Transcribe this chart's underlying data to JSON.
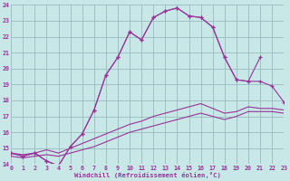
{
  "xlabel": "Windchill (Refroidissement éolien,°C)",
  "bg_color": "#c8e8e8",
  "grid_color": "#99bbbb",
  "line_color": "#993399",
  "xlim": [
    0,
    23
  ],
  "ylim": [
    14,
    24
  ],
  "xticks": [
    0,
    1,
    2,
    3,
    4,
    5,
    6,
    7,
    8,
    9,
    10,
    11,
    12,
    13,
    14,
    15,
    16,
    17,
    18,
    19,
    20,
    21,
    22,
    23
  ],
  "yticks": [
    14,
    15,
    16,
    17,
    18,
    19,
    20,
    21,
    22,
    23,
    24
  ],
  "curve1_x": [
    0,
    1,
    2,
    3,
    4,
    5,
    6,
    7,
    8,
    9,
    10,
    11,
    12,
    13,
    14,
    15,
    16,
    17,
    18,
    19,
    20,
    21
  ],
  "curve1_y": [
    14.7,
    14.5,
    14.7,
    14.2,
    13.9,
    15.1,
    15.9,
    17.4,
    19.6,
    20.7,
    22.3,
    21.8,
    23.2,
    23.6,
    23.8,
    23.3,
    23.2,
    22.6,
    20.7,
    19.3,
    19.2,
    20.7
  ],
  "curve2_x": [
    0,
    1,
    2,
    3,
    4,
    5,
    6,
    7,
    8,
    9,
    10,
    11,
    12,
    13,
    14,
    15,
    16,
    17,
    18,
    19,
    20,
    21,
    22,
    23
  ],
  "curve2_y": [
    14.7,
    14.5,
    14.7,
    14.2,
    13.9,
    15.1,
    15.9,
    17.4,
    19.6,
    20.7,
    22.3,
    21.8,
    23.2,
    23.6,
    23.8,
    23.3,
    23.2,
    22.6,
    20.7,
    19.3,
    19.2,
    19.2,
    18.9,
    17.9
  ],
  "curve3_x": [
    0,
    1,
    2,
    3,
    4,
    5,
    6,
    7,
    8,
    9,
    10,
    11,
    12,
    13,
    14,
    15,
    16,
    17,
    18,
    19,
    20,
    21,
    22,
    23
  ],
  "curve3_y": [
    14.7,
    14.6,
    14.7,
    14.9,
    14.7,
    15.0,
    15.3,
    15.6,
    15.9,
    16.2,
    16.5,
    16.7,
    17.0,
    17.2,
    17.4,
    17.6,
    17.8,
    17.5,
    17.2,
    17.3,
    17.6,
    17.5,
    17.5,
    17.4
  ],
  "curve4_x": [
    0,
    1,
    2,
    3,
    4,
    5,
    6,
    7,
    8,
    9,
    10,
    11,
    12,
    13,
    14,
    15,
    16,
    17,
    18,
    19,
    20,
    21,
    22,
    23
  ],
  "curve4_y": [
    14.5,
    14.4,
    14.5,
    14.6,
    14.5,
    14.7,
    14.9,
    15.1,
    15.4,
    15.7,
    16.0,
    16.2,
    16.4,
    16.6,
    16.8,
    17.0,
    17.2,
    17.0,
    16.8,
    17.0,
    17.3,
    17.3,
    17.3,
    17.2
  ]
}
